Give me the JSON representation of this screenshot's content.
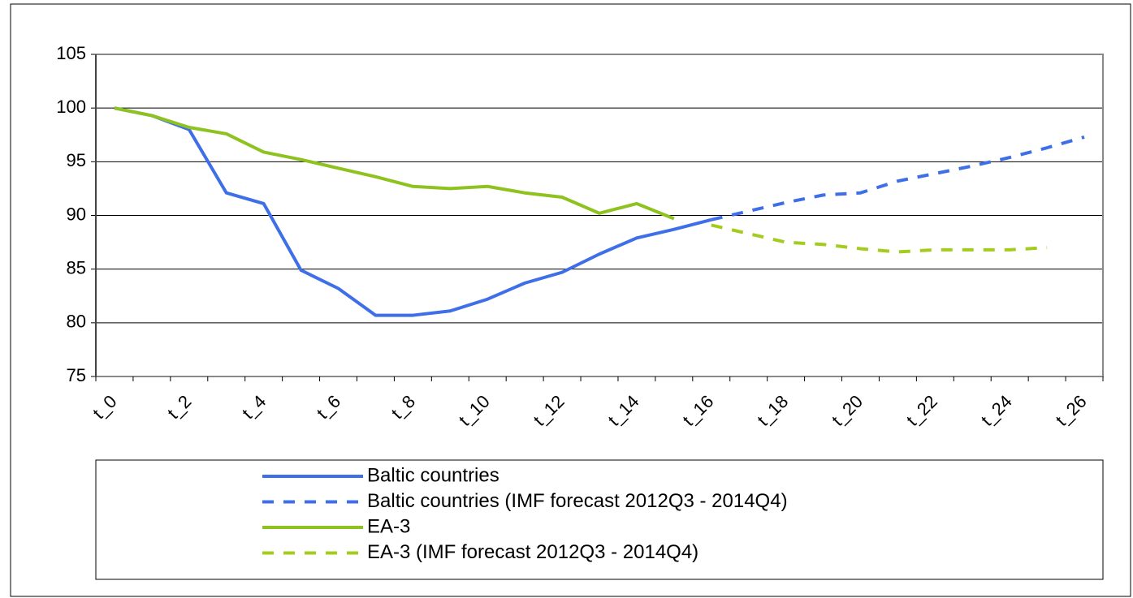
{
  "chart_data": {
    "type": "line",
    "categories": [
      "t_0",
      null,
      "t_2",
      null,
      "t_4",
      null,
      "t_6",
      null,
      "t_8",
      null,
      "t_10",
      null,
      "t_12",
      null,
      "t_14",
      null,
      "t_16",
      null,
      "t_18",
      null,
      "t_20",
      null,
      "t_22",
      null,
      "t_24",
      null,
      "t_26"
    ],
    "series": [
      {
        "name": "Baltic countries",
        "color": "#3f6fe8",
        "dash": false,
        "values": [
          100,
          99.3,
          98,
          92.1,
          91.1,
          84.9,
          83.2,
          80.7,
          80.7,
          81.1,
          82.2,
          83.7,
          84.7,
          86.4,
          87.9,
          88.7,
          89.6,
          null,
          null,
          null,
          null,
          null,
          null,
          null,
          null,
          null,
          null
        ]
      },
      {
        "name": "Baltic countries (IMF forecast 2012Q3 - 2014Q4)",
        "color": "#3f6fe8",
        "dash": true,
        "values": [
          null,
          null,
          null,
          null,
          null,
          null,
          null,
          null,
          null,
          null,
          null,
          null,
          null,
          null,
          null,
          null,
          89.6,
          90.4,
          91.2,
          91.9,
          92.1,
          93.2,
          93.9,
          94.6,
          95.4,
          96.3,
          97.3
        ]
      },
      {
        "name": "EA-3",
        "color": "#8dc21f",
        "dash": false,
        "values": [
          100,
          99.3,
          98.2,
          97.6,
          95.9,
          95.2,
          94.4,
          93.6,
          92.7,
          92.5,
          92.7,
          92.1,
          91.7,
          90.2,
          91.1,
          89.7,
          null,
          null,
          null,
          null,
          null,
          null,
          null,
          null,
          null,
          null,
          null
        ]
      },
      {
        "name": "EA-3 (IMF forecast 2012Q3 - 2014Q4)",
        "color": "#a4cc1e",
        "dash": true,
        "values": [
          null,
          null,
          null,
          null,
          null,
          null,
          null,
          null,
          null,
          null,
          null,
          null,
          null,
          null,
          null,
          null,
          89.1,
          88.3,
          87.5,
          87.3,
          86.9,
          86.6,
          86.8,
          86.8,
          86.8,
          87.0,
          null
        ]
      }
    ],
    "ylim": [
      75,
      105
    ],
    "yticks": [
      75,
      80,
      85,
      90,
      95,
      100,
      105
    ],
    "grid": true
  }
}
